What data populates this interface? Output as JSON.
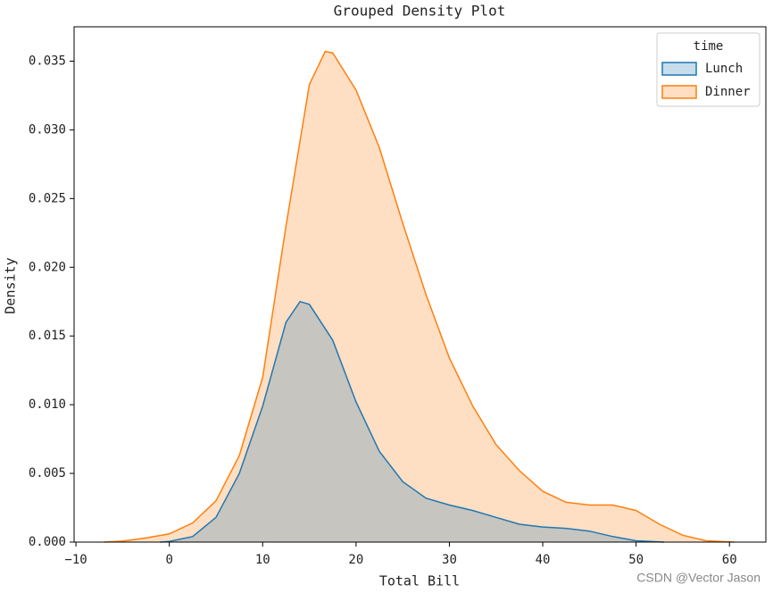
{
  "chart_data": {
    "type": "kde",
    "title": "Grouped Density Plot",
    "xlabel": "Total Bill",
    "ylabel": "Density",
    "xlim": [
      -10.2,
      63.9
    ],
    "ylim": [
      0,
      0.0375
    ],
    "xticks": [
      {
        "value": -10,
        "label": "−10"
      },
      0,
      10,
      20,
      30,
      40,
      50,
      60
    ],
    "yticks": [
      {
        "value": 0,
        "label": "0.000"
      },
      0.005,
      {
        "value": 0.01,
        "label": "0.010"
      },
      0.015,
      {
        "value": 0.02,
        "label": "0.020"
      },
      0.025,
      {
        "value": 0.03,
        "label": "0.030"
      },
      0.035
    ],
    "legend_title": "time",
    "legend": "upper right",
    "series": [
      {
        "name": "Lunch",
        "color": "#1f77b4",
        "x": [
          -1,
          0,
          2.5,
          5,
          7.5,
          10,
          12.5,
          14,
          15,
          17.5,
          20,
          22.5,
          25,
          27.5,
          30,
          32.5,
          35,
          37.5,
          40,
          42.5,
          45,
          47.5,
          50,
          53
        ],
        "values": [
          0,
          5e-05,
          0.0004,
          0.0018,
          0.005,
          0.0099,
          0.016,
          0.0175,
          0.0173,
          0.0147,
          0.0102,
          0.0066,
          0.0044,
          0.0032,
          0.0027,
          0.0023,
          0.0018,
          0.0013,
          0.0011,
          0.001,
          0.0008,
          0.0004,
          0.0001,
          0
        ]
      },
      {
        "name": "Dinner",
        "color": "#ff7f0e",
        "x": [
          -7,
          -5,
          -2.5,
          0,
          2.5,
          5,
          7.5,
          10,
          12.5,
          15,
          16.7,
          17.5,
          20,
          22.5,
          25,
          27.5,
          30,
          32.5,
          35,
          37.5,
          40,
          42.5,
          45,
          47.5,
          50,
          52.5,
          55,
          57.5,
          60.5
        ],
        "values": [
          0,
          7e-05,
          0.0003,
          0.0006,
          0.0014,
          0.003,
          0.0063,
          0.012,
          0.023,
          0.0333,
          0.0357,
          0.0356,
          0.0329,
          0.0287,
          0.0232,
          0.018,
          0.0134,
          0.0099,
          0.0071,
          0.0052,
          0.0037,
          0.0029,
          0.0027,
          0.0027,
          0.0023,
          0.0013,
          0.0005,
          0.0001,
          0
        ]
      }
    ],
    "watermark": "CSDN @Vector Jason"
  }
}
